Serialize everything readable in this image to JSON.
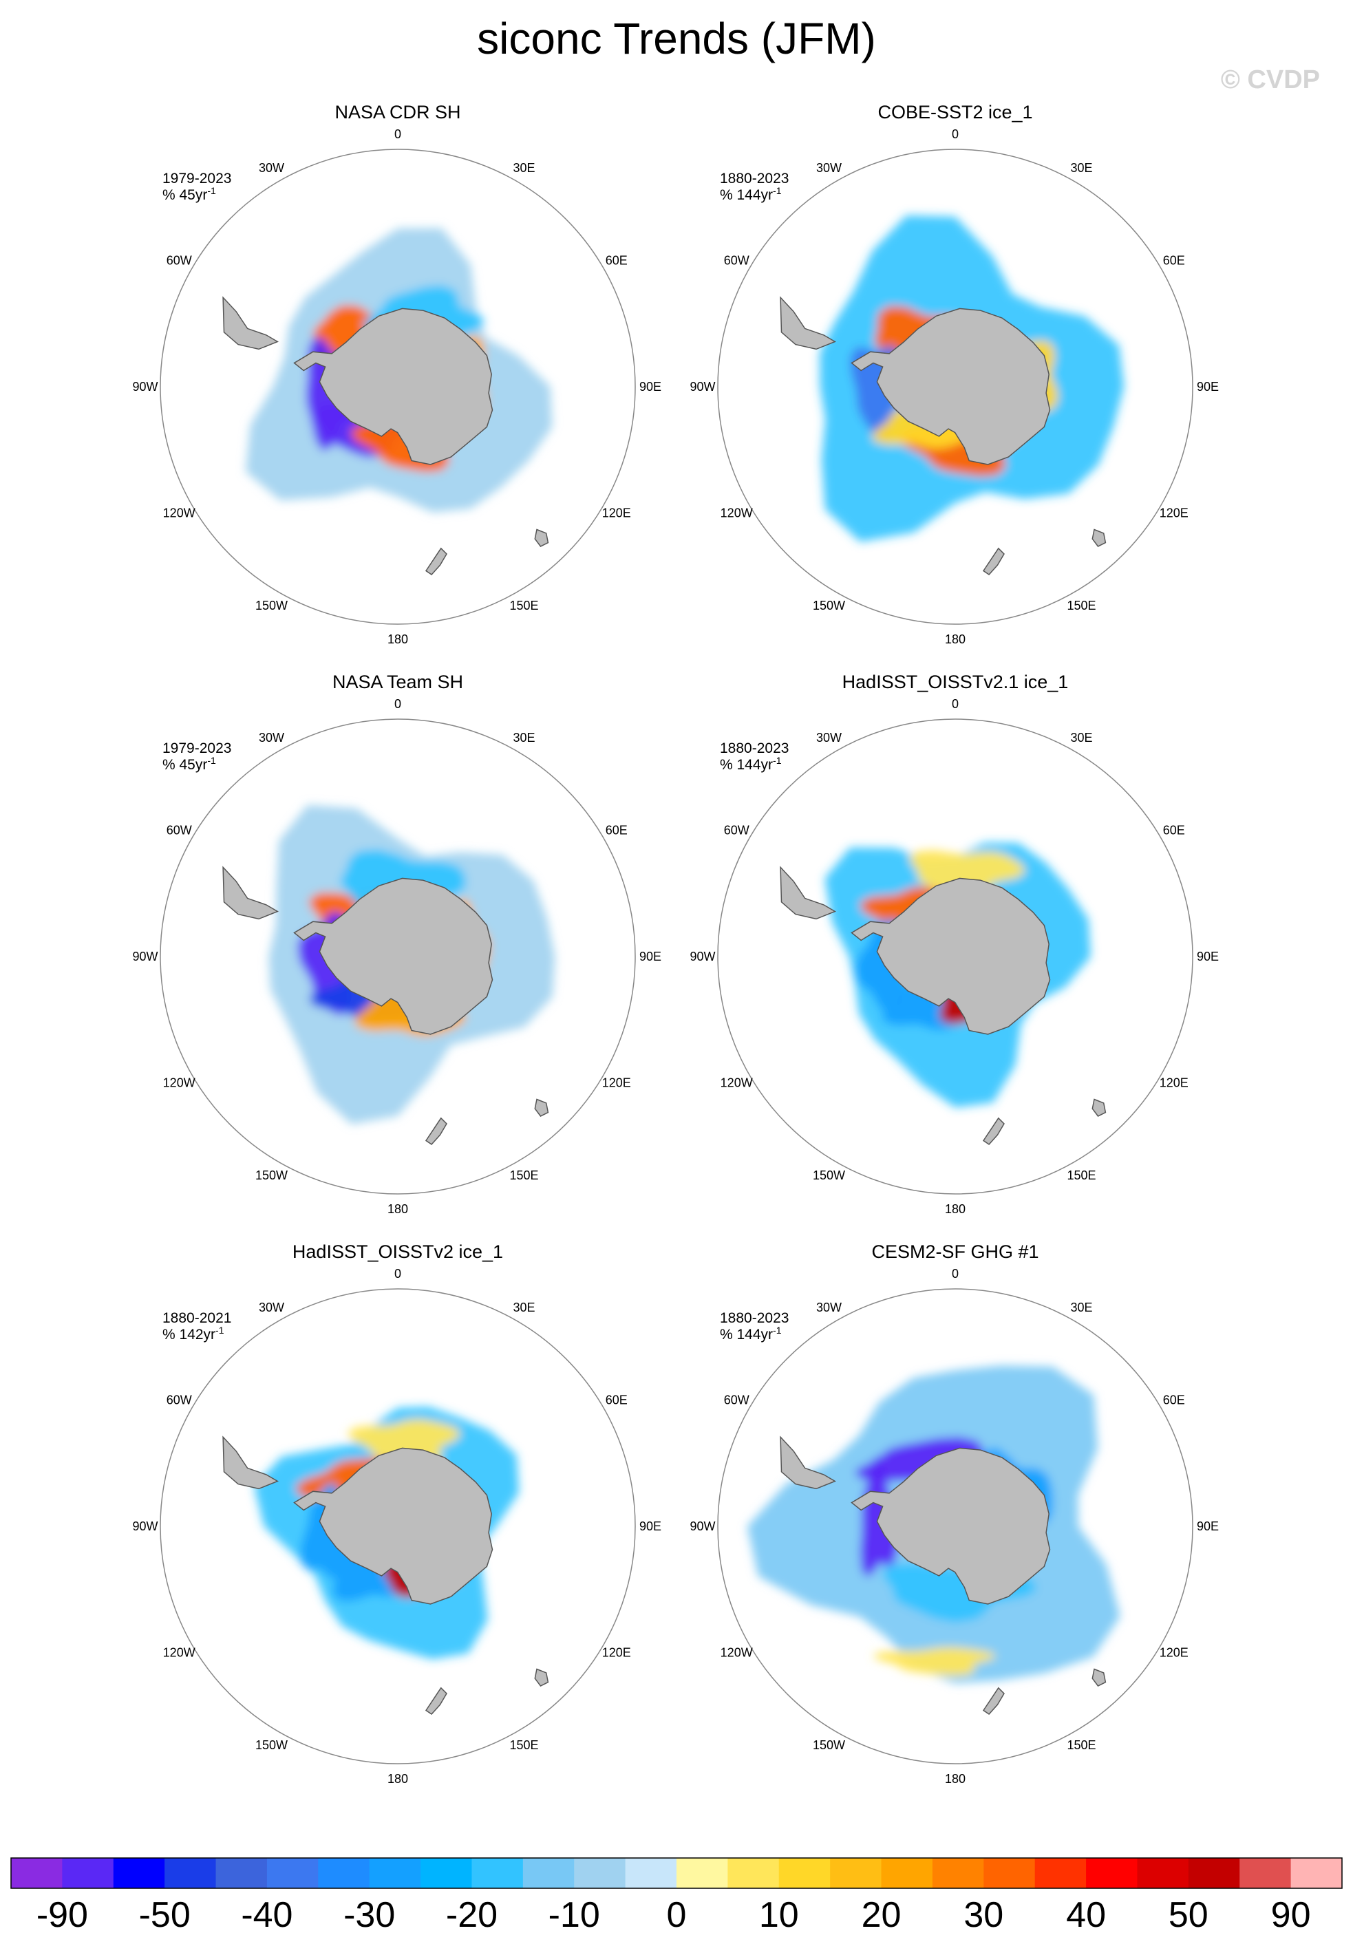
{
  "figure": {
    "title": "siconc Trends (JFM)",
    "watermark": "© CVDP"
  },
  "chart_data": {
    "type": "polar-map-grid",
    "projection": "south-polar-stereographic",
    "variable": "siconc",
    "season": "JFM",
    "units": "% per period",
    "longitude_labels": [
      "0",
      "30E",
      "60E",
      "90E",
      "120E",
      "150E",
      "180",
      "150W",
      "120W",
      "90W",
      "60W",
      "30W"
    ],
    "colorbar": {
      "colors": [
        "#8a2be2",
        "#5a28f5",
        "#0000ff",
        "#1a3de8",
        "#3c64dc",
        "#3c78f0",
        "#1e8cff",
        "#14a0ff",
        "#00b4ff",
        "#32c3ff",
        "#78c8f5",
        "#a0d2f0",
        "#c8e6fa",
        "#fff8a0",
        "#ffe65a",
        "#ffd728",
        "#ffbe14",
        "#ffa500",
        "#ff8200",
        "#ff6400",
        "#ff3200",
        "#ff0000",
        "#dc0000",
        "#c30000",
        "#e05050",
        "#ffb4b4"
      ],
      "tick_labels": [
        "-90",
        "-50",
        "-40",
        "-30",
        "-20",
        "-10",
        "0",
        "10",
        "20",
        "30",
        "40",
        "50",
        "90"
      ]
    },
    "panels": [
      {
        "title": "NASA CDR SH",
        "period": "1979-2023",
        "trend_unit_base": "% 45yr",
        "trend_unit_exp": "-1",
        "regions": [
          {
            "sector": "Bellingshausen-Amundsen",
            "sign": "negative",
            "level": -50
          },
          {
            "sector": "Weddell",
            "sign": "positive",
            "level": 30
          },
          {
            "sector": "Ross",
            "sign": "positive",
            "level": 30
          }
        ]
      },
      {
        "title": "COBE-SST2 ice_1",
        "period": "1880-2023",
        "trend_unit_base": "% 144yr",
        "trend_unit_exp": "-1",
        "regions": [
          {
            "sector": "Bellingshausen",
            "sign": "negative",
            "level": -30
          },
          {
            "sector": "Weddell",
            "sign": "positive",
            "level": 30
          },
          {
            "sector": "Ross",
            "sign": "positive",
            "level": 30
          }
        ]
      },
      {
        "title": "NASA Team SH",
        "period": "1979-2023",
        "trend_unit_base": "% 45yr",
        "trend_unit_exp": "-1",
        "regions": [
          {
            "sector": "Bellingshausen-Amundsen",
            "sign": "negative",
            "level": -50
          },
          {
            "sector": "Weddell",
            "sign": "positive",
            "level": 30
          },
          {
            "sector": "Ross",
            "sign": "positive",
            "level": 20
          }
        ]
      },
      {
        "title": "HadISST_OISSTv2.1 ice_1",
        "period": "1880-2023",
        "trend_unit_base": "% 144yr",
        "trend_unit_exp": "-1",
        "regions": [
          {
            "sector": "Amundsen",
            "sign": "negative",
            "level": -20
          },
          {
            "sector": "Weddell",
            "sign": "positive",
            "level": 30
          },
          {
            "sector": "Ross",
            "sign": "positive",
            "level": 50
          }
        ]
      },
      {
        "title": "HadISST_OISSTv2 ice_1",
        "period": "1880-2021",
        "trend_unit_base": "% 142yr",
        "trend_unit_exp": "-1",
        "regions": [
          {
            "sector": "Amundsen",
            "sign": "negative",
            "level": -20
          },
          {
            "sector": "Weddell",
            "sign": "positive",
            "level": 30
          },
          {
            "sector": "Ross",
            "sign": "positive",
            "level": 50
          }
        ]
      },
      {
        "title": "CESM2-SF GHG #1",
        "period": "1880-2023",
        "trend_unit_base": "% 144yr",
        "trend_unit_exp": "-1",
        "regions": [
          {
            "sector": "circumpolar",
            "sign": "negative",
            "level": -10
          },
          {
            "sector": "Weddell-Bellingshausen",
            "sign": "negative",
            "level": -50
          }
        ]
      }
    ]
  }
}
